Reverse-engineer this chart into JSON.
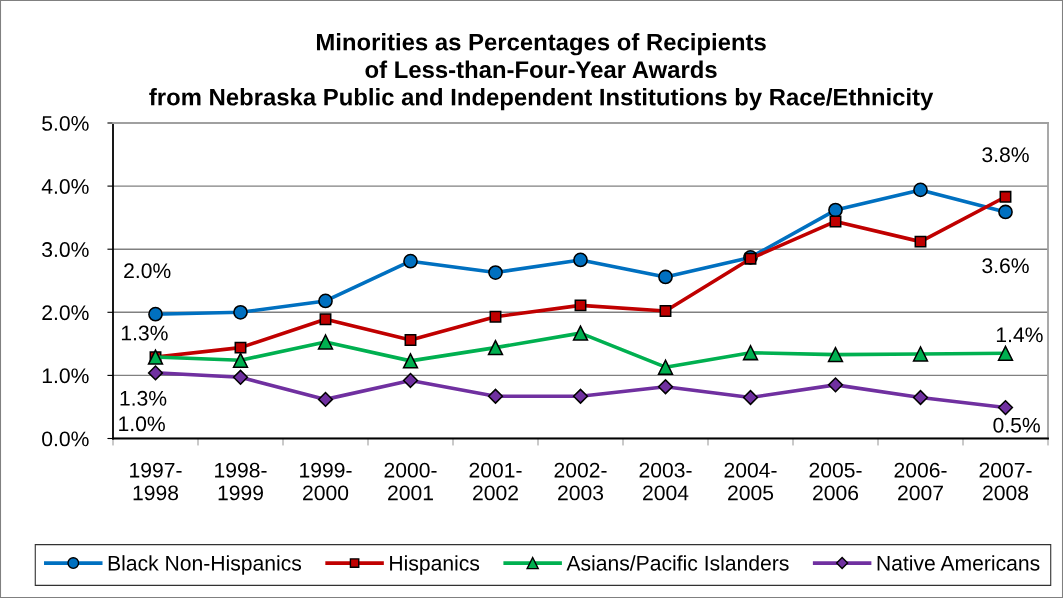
{
  "chart_data": {
    "type": "line",
    "title": "Minorities as Percentages of Recipients\nof Less-than-Four-Year Awards\nfrom Nebraska Public and Independent Institutions by Race/Ethnicity",
    "categories": [
      "1997-\n1998",
      "1998-\n1999",
      "1999-\n2000",
      "2000-\n2001",
      "2001-\n2002",
      "2002-\n2003",
      "2003-\n2004",
      "2004-\n2005",
      "2005-\n2006",
      "2006-\n2007",
      "2007-\n2008"
    ],
    "ylim": [
      0,
      5
    ],
    "yticks": [
      {
        "value": 0,
        "label": "0.0%"
      },
      {
        "value": 1,
        "label": "1.0%"
      },
      {
        "value": 2,
        "label": "2.0%"
      },
      {
        "value": 3,
        "label": "3.0%"
      },
      {
        "value": 4,
        "label": "4.0%"
      },
      {
        "value": 5,
        "label": "5.0%"
      }
    ],
    "grid": "y",
    "legend": "bottom",
    "line_style": "solid",
    "series": [
      {
        "name": "Black Non-Hispanics",
        "color": "#0070c0",
        "marker": "circle",
        "values": [
          1.97,
          2.0,
          2.18,
          2.81,
          2.63,
          2.83,
          2.56,
          2.87,
          3.62,
          3.94,
          3.59
        ],
        "value_labels": [
          "2.0%",
          null,
          null,
          null,
          null,
          null,
          null,
          null,
          null,
          null,
          "3.6%"
        ]
      },
      {
        "name": "Hispanics",
        "color": "#c00000",
        "marker": "square",
        "values": [
          1.29,
          1.44,
          1.89,
          1.56,
          1.93,
          2.11,
          2.02,
          2.85,
          3.44,
          3.12,
          3.83
        ],
        "value_labels": [
          "1.3%",
          null,
          null,
          null,
          null,
          null,
          null,
          null,
          null,
          null,
          "3.8%"
        ]
      },
      {
        "name": "Asians/Pacific Islanders",
        "color": "#00b050",
        "marker": "triangle",
        "values": [
          1.29,
          1.24,
          1.53,
          1.23,
          1.44,
          1.67,
          1.13,
          1.36,
          1.33,
          1.34,
          1.35
        ],
        "value_labels": [
          "1.3%",
          null,
          null,
          null,
          null,
          null,
          null,
          null,
          null,
          null,
          "1.4%"
        ]
      },
      {
        "name": "Native Americans",
        "color": "#7030a0",
        "marker": "diamond",
        "values": [
          1.04,
          0.97,
          0.62,
          0.92,
          0.67,
          0.67,
          0.82,
          0.65,
          0.85,
          0.65,
          0.49
        ],
        "value_labels": [
          "1.0%",
          null,
          null,
          null,
          null,
          null,
          null,
          null,
          null,
          null,
          "0.5%"
        ]
      }
    ]
  }
}
